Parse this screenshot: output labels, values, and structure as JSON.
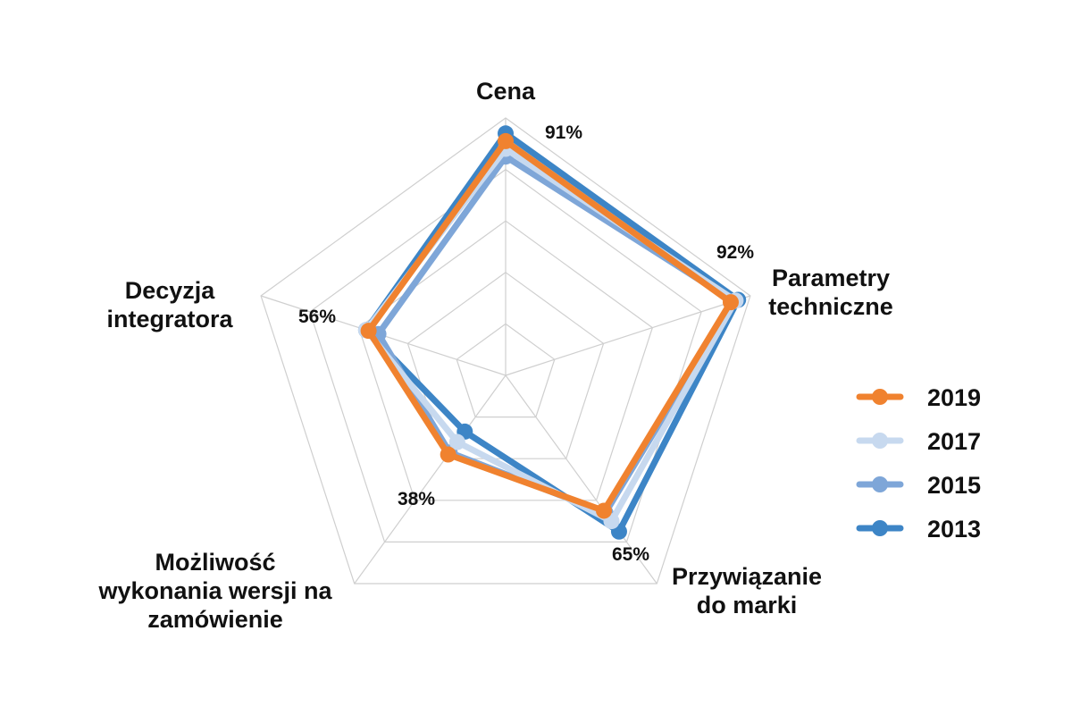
{
  "chart_data": {
    "type": "radar",
    "axes": [
      {
        "label": [
          "Cena"
        ]
      },
      {
        "label": [
          "Parametry",
          "techniczne"
        ]
      },
      {
        "label": [
          "Przywiązanie",
          "do marki"
        ]
      },
      {
        "label": [
          "Możliwość",
          "wykonania wersji na",
          "zamówienie"
        ]
      },
      {
        "label": [
          "Decyzja",
          "integratora"
        ]
      }
    ],
    "range": [
      0,
      100
    ],
    "grid_levels": 5,
    "series": [
      {
        "name": "2013",
        "color": "#3d85c6",
        "values": [
          94,
          95,
          75,
          27,
          57
        ]
      },
      {
        "name": "2015",
        "color": "#7ea6d8",
        "values": [
          85,
          93,
          66,
          37,
          52
        ]
      },
      {
        "name": "2017",
        "color": "#c7d9ef",
        "values": [
          88,
          94,
          70,
          32,
          57
        ]
      },
      {
        "name": "2019",
        "color": "#f0822f",
        "values": [
          91,
          92,
          65,
          38,
          56
        ]
      }
    ],
    "data_labels": [
      "91%",
      "92%",
      "65%",
      "38%",
      "56%"
    ],
    "legend": {
      "position": "right",
      "order": [
        "2019",
        "2017",
        "2015",
        "2013"
      ]
    }
  }
}
